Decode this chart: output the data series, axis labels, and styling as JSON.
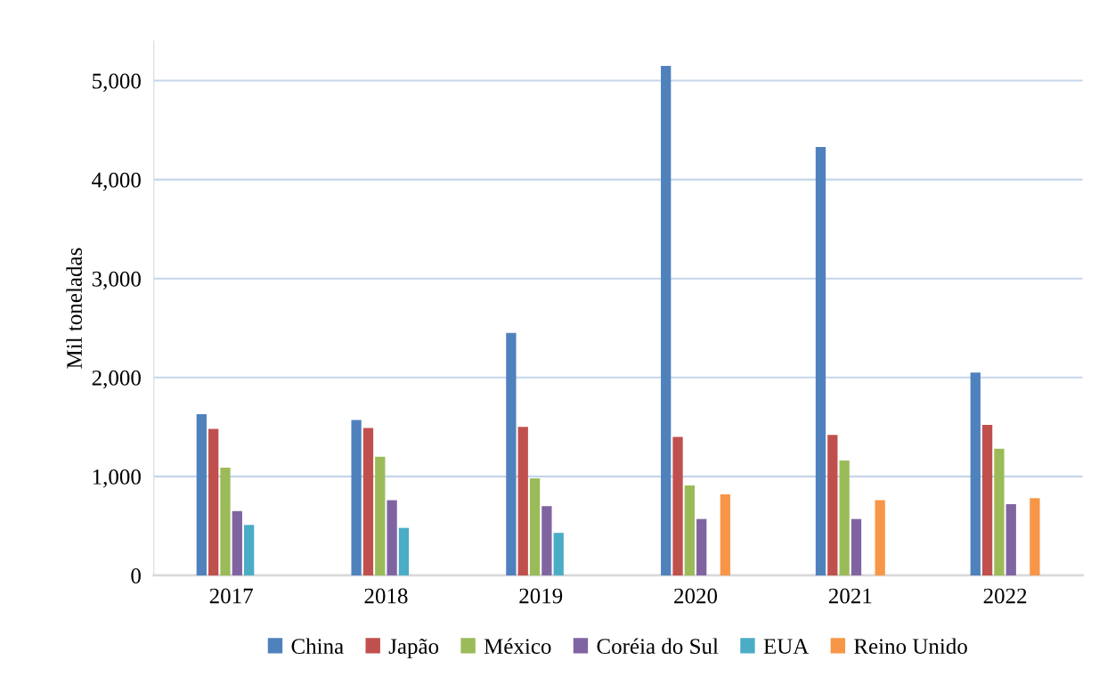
{
  "chart_data": {
    "type": "bar",
    "ylabel": "Mil toneladas",
    "categories": [
      "2017",
      "2018",
      "2019",
      "2020",
      "2021",
      "2022"
    ],
    "series": [
      {
        "name": "China",
        "color": "#4f81bd",
        "values": [
          1630,
          1570,
          2450,
          5150,
          4330,
          2050
        ]
      },
      {
        "name": "Japão",
        "color": "#c0504d",
        "values": [
          1480,
          1490,
          1500,
          1400,
          1420,
          1520
        ]
      },
      {
        "name": "México",
        "color": "#9bbb59",
        "values": [
          1090,
          1200,
          980,
          910,
          1160,
          1280
        ]
      },
      {
        "name": "Coréia do Sul",
        "color": "#8064a2",
        "values": [
          650,
          760,
          700,
          570,
          570,
          720
        ]
      },
      {
        "name": "EUA",
        "color": "#4bacc6",
        "values": [
          510,
          480,
          430,
          null,
          null,
          null
        ]
      },
      {
        "name": "Reino Unido",
        "color": "#f79646",
        "values": [
          null,
          null,
          null,
          820,
          760,
          780
        ]
      }
    ],
    "ylim": [
      0,
      5400
    ],
    "yticks": [
      {
        "value": 0,
        "label": "0"
      },
      {
        "value": 1000,
        "label": "1,000"
      },
      {
        "value": 2000,
        "label": "2,000"
      },
      {
        "value": 3000,
        "label": "3,000"
      },
      {
        "value": 4000,
        "label": "4,000"
      },
      {
        "value": 5000,
        "label": "5,000"
      }
    ],
    "grid": "y",
    "legend": "bottom"
  }
}
